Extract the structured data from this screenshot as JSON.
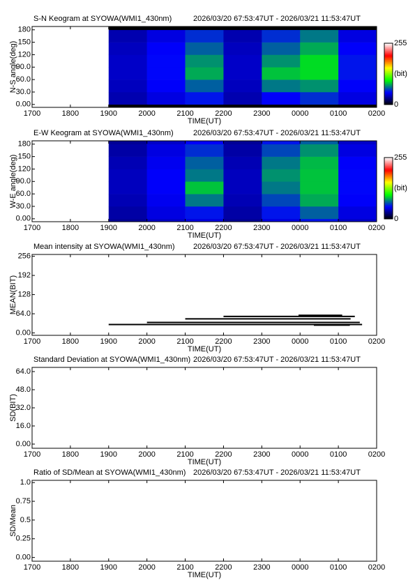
{
  "chart_data": [
    {
      "type": "heatmap",
      "title": "S-N Keogram at SYOWA(WMI1_430nm)",
      "subtitle": "2026/03/20 67:53:47UT - 2026/03/21 11:53:47UT",
      "x_label": "TIME(UT)",
      "y_label": "N-S angle(deg)",
      "xlim": [
        17,
        26
      ],
      "xticks": [
        {
          "value": 17,
          "label": "1700"
        },
        {
          "value": 18,
          "label": "1800"
        },
        {
          "value": 19,
          "label": "1900"
        },
        {
          "value": 20,
          "label": "2000"
        },
        {
          "value": 21,
          "label": "2100"
        },
        {
          "value": 22,
          "label": "2200"
        },
        {
          "value": 23,
          "label": "2300"
        },
        {
          "value": 24,
          "label": "0000"
        },
        {
          "value": 25,
          "label": "0100"
        },
        {
          "value": 26,
          "label": "0200"
        }
      ],
      "ylim": [
        -7,
        188
      ],
      "yticks": [
        {
          "value": 0,
          "label": "0.00"
        },
        {
          "value": 30,
          "label": "30.0"
        },
        {
          "value": 60,
          "label": "60.0"
        },
        {
          "value": 90,
          "label": "90.0"
        },
        120,
        150,
        180
      ],
      "x_bins": [
        19,
        20,
        21,
        22,
        23,
        24,
        25,
        26
      ],
      "y_bins": [
        -7,
        0,
        30,
        60,
        90,
        120,
        150,
        180,
        188
      ],
      "values": [
        [
          0,
          0,
          0,
          0,
          0,
          0,
          0
        ],
        [
          35,
          45,
          55,
          35,
          50,
          60,
          45
        ],
        [
          38,
          50,
          70,
          38,
          75,
          80,
          50
        ],
        [
          40,
          52,
          85,
          40,
          90,
          95,
          55
        ],
        [
          40,
          52,
          80,
          40,
          80,
          95,
          55
        ],
        [
          38,
          50,
          70,
          38,
          70,
          85,
          50
        ],
        [
          35,
          45,
          60,
          35,
          60,
          75,
          45
        ],
        [
          0,
          0,
          0,
          0,
          0,
          0,
          0
        ]
      ],
      "colormap": [
        "#000000",
        "#0000ff",
        "#00ff00",
        "#ffff00",
        "#ff0000",
        "#ffffff"
      ],
      "clim": [
        0,
        255
      ],
      "colorbar_ticks": [
        0,
        255
      ],
      "colorbar_label": "(bit)"
    },
    {
      "type": "heatmap",
      "title": "E-W Keogram at SYOWA(WMI1_430nm)",
      "subtitle": "2026/03/20 67:53:47UT - 2026/03/21 11:53:47UT",
      "x_label": "TIME(UT)",
      "y_label": "W-E angle(deg)",
      "xlim": [
        17,
        26
      ],
      "xticks": [
        {
          "value": 17,
          "label": "1700"
        },
        {
          "value": 18,
          "label": "1800"
        },
        {
          "value": 19,
          "label": "1900"
        },
        {
          "value": 20,
          "label": "2000"
        },
        {
          "value": 21,
          "label": "2100"
        },
        {
          "value": 22,
          "label": "2200"
        },
        {
          "value": 23,
          "label": "2300"
        },
        {
          "value": 24,
          "label": "0000"
        },
        {
          "value": 25,
          "label": "0100"
        },
        {
          "value": 26,
          "label": "0200"
        }
      ],
      "ylim": [
        -7,
        188
      ],
      "yticks": [
        {
          "value": 0,
          "label": "0.00"
        },
        {
          "value": 30,
          "label": "30.0"
        },
        {
          "value": 60,
          "label": "60.0"
        },
        {
          "value": 90,
          "label": "90.0"
        },
        120,
        150,
        180
      ],
      "x_bins": [
        19,
        20,
        21,
        22,
        23,
        24,
        25,
        26
      ],
      "y_bins": [
        -7,
        0,
        30,
        60,
        90,
        120,
        150,
        180,
        188
      ],
      "values": [
        [
          30,
          40,
          45,
          30,
          45,
          55,
          40
        ],
        [
          33,
          45,
          55,
          33,
          55,
          70,
          45
        ],
        [
          36,
          48,
          75,
          36,
          65,
          85,
          50
        ],
        [
          38,
          50,
          90,
          38,
          75,
          90,
          52
        ],
        [
          38,
          50,
          75,
          38,
          80,
          90,
          52
        ],
        [
          36,
          48,
          70,
          36,
          75,
          88,
          50
        ],
        [
          33,
          45,
          60,
          33,
          65,
          80,
          45
        ],
        [
          30,
          40,
          50,
          30,
          55,
          70,
          40
        ]
      ],
      "colormap": [
        "#000000",
        "#0000ff",
        "#00ff00",
        "#ffff00",
        "#ff0000",
        "#ffffff"
      ],
      "clim": [
        0,
        255
      ],
      "colorbar_ticks": [
        0,
        255
      ],
      "colorbar_label": "(bit)"
    },
    {
      "type": "segments",
      "title": "Mean intensity at SYOWA(WMI1_430nm)",
      "subtitle": "2026/03/20 67:53:47UT - 2026/03/21 11:53:47UT",
      "x_label": "TIME(UT)",
      "y_label": "MEAN(BIT)",
      "xlim": [
        17,
        26
      ],
      "xticks": [
        {
          "value": 17,
          "label": "1700"
        },
        {
          "value": 18,
          "label": "1800"
        },
        {
          "value": 19,
          "label": "1900"
        },
        {
          "value": 20,
          "label": "2000"
        },
        {
          "value": 21,
          "label": "2100"
        },
        {
          "value": 22,
          "label": "2200"
        },
        {
          "value": 23,
          "label": "2300"
        },
        {
          "value": 24,
          "label": "0000"
        },
        {
          "value": 25,
          "label": "0100"
        },
        {
          "value": 26,
          "label": "0200"
        }
      ],
      "ylim": [
        -8,
        262
      ],
      "yticks": [
        {
          "value": 0,
          "label": "0.00"
        },
        {
          "value": 64,
          "label": "64.0"
        },
        128,
        192,
        256
      ],
      "color": "#000000",
      "segments": [
        {
          "x": [
            19.0,
            25.62
          ],
          "value": 28
        },
        {
          "x": [
            20.0,
            25.56
          ],
          "value": 35
        },
        {
          "x": [
            21.0,
            25.32
          ],
          "value": 47
        },
        {
          "x": [
            22.0,
            25.43
          ],
          "value": 55
        },
        {
          "x": [
            24.36,
            25.3
          ],
          "value": 26
        },
        {
          "x": [
            23.96,
            25.1
          ],
          "value": 59
        }
      ]
    },
    {
      "type": "line",
      "title": "Standard Deviation at SYOWA(WMI1_430nm)",
      "subtitle": "2026/03/20 67:53:47UT - 2026/03/21 11:53:47UT",
      "x_label": "TIME(UT)",
      "y_label": "SD(BIT)",
      "xlim": [
        17,
        26
      ],
      "xticks": [
        {
          "value": 17,
          "label": "1700"
        },
        {
          "value": 18,
          "label": "1800"
        },
        {
          "value": 19,
          "label": "1900"
        },
        {
          "value": 20,
          "label": "2000"
        },
        {
          "value": 21,
          "label": "2100"
        },
        {
          "value": 22,
          "label": "2200"
        },
        {
          "value": 23,
          "label": "2300"
        },
        {
          "value": 24,
          "label": "0000"
        },
        {
          "value": 25,
          "label": "0100"
        },
        {
          "value": 26,
          "label": "0200"
        }
      ],
      "ylim": [
        -3.7,
        67.7
      ],
      "yticks": [
        {
          "value": 0,
          "label": "0.00"
        },
        {
          "value": 16,
          "label": "16.0"
        },
        {
          "value": 32,
          "label": "32.0"
        },
        {
          "value": 48,
          "label": "48.0"
        },
        {
          "value": 64,
          "label": "64.0"
        }
      ]
    },
    {
      "type": "line",
      "title": "Ratio of SD/Mean at SYOWA(WMI1_430nm)",
      "subtitle": "2026/03/20 67:53:47UT - 2026/03/21 11:53:47UT",
      "x_label": "TIME(UT)",
      "y_label": "SD/Mean",
      "xlim": [
        17,
        26
      ],
      "xticks": [
        {
          "value": 17,
          "label": "1700"
        },
        {
          "value": 18,
          "label": "1800"
        },
        {
          "value": 19,
          "label": "1900"
        },
        {
          "value": 20,
          "label": "2000"
        },
        {
          "value": 21,
          "label": "2100"
        },
        {
          "value": 22,
          "label": "2200"
        },
        {
          "value": 23,
          "label": "2300"
        },
        {
          "value": 24,
          "label": "0000"
        },
        {
          "value": 25,
          "label": "0100"
        },
        {
          "value": 26,
          "label": "0200"
        }
      ],
      "ylim": [
        -0.05,
        1.03
      ],
      "yticks": [
        {
          "value": 0,
          "label": "0.00"
        },
        0.25,
        0.5,
        0.75,
        {
          "value": 1,
          "label": "1.0"
        }
      ]
    }
  ]
}
